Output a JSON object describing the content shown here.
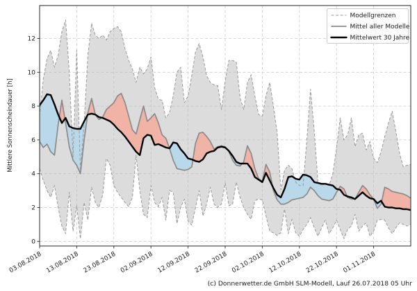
{
  "figure": {
    "ylabel": "Mittlere Sonnenscheindauer [h]",
    "footer": "(c) Donnerwetter.de GmbH SLM-Modell, Lauf 26.07.2018 05 Uhr"
  },
  "legend": {
    "position": "upper right",
    "items": [
      {
        "label": "Modellgrenzen",
        "style": "dashed-gray"
      },
      {
        "label": "Mittel aller Modelle",
        "style": "solid-gray"
      },
      {
        "label": "Mittelwert 30 Jahre",
        "style": "solid-black-thick"
      }
    ]
  },
  "chart_data": {
    "type": "line",
    "title": "",
    "xlabel": "",
    "ylabel": "Mittlere Sonnenscheindauer [h]",
    "x_tick_labels": [
      "03.08.2018",
      "13.08.2018",
      "23.08.2018",
      "02.09.2018",
      "12.09.2018",
      "22.09.2018",
      "02.10.2018",
      "12.10.2018",
      "22.10.2018",
      "01.11.2018"
    ],
    "x_tick_days": [
      0,
      10,
      20,
      30,
      40,
      50,
      60,
      70,
      80,
      90
    ],
    "x_total_days": 100,
    "y_ticks": [
      0,
      2,
      4,
      6,
      8,
      10,
      12
    ],
    "ylim": [
      -0.28,
      13.95
    ],
    "grid": true,
    "series": [
      {
        "name": "Modellgrenzen (obere Grenze)",
        "role": "upper_bound",
        "values": [
          7.4,
          9.6,
          10.8,
          11.3,
          10.3,
          11.0,
          12.4,
          13.1,
          10.0,
          5.0,
          11.3,
          4.2,
          7.0,
          11.0,
          12.9,
          12.2,
          12.0,
          12.2,
          11.9,
          12.4,
          12.6,
          12.7,
          12.4,
          11.4,
          10.7,
          10.2,
          9.4,
          10.3,
          9.9,
          10.2,
          10.9,
          9.1,
          8.4,
          8.35,
          7.3,
          7.6,
          8.6,
          10.0,
          10.3,
          8.2,
          8.6,
          9.8,
          11.2,
          11.7,
          10.9,
          9.8,
          9.4,
          9.25,
          9.2,
          7.8,
          9.5,
          10.7,
          10.7,
          10.6,
          8.5,
          7.8,
          9.4,
          9.85,
          8.6,
          7.5,
          7.4,
          8.6,
          9.4,
          8.0,
          6.4,
          3.05,
          4.2,
          4.5,
          4.3,
          3.5,
          3.3,
          3.3,
          6.0,
          9.0,
          6.5,
          3.5,
          3.3,
          3.4,
          3.3,
          4.0,
          5.5,
          7.3,
          6.0,
          6.3,
          7.3,
          5.6,
          6.3,
          6.4,
          5.4,
          5.9,
          4.9,
          4.65,
          5.3,
          6.2,
          7.0,
          7.7,
          6.5,
          5.2,
          4.4,
          4.5,
          4.55
        ]
      },
      {
        "name": "Modellgrenzen (untere Grenze)",
        "role": "lower_bound",
        "values": [
          4.3,
          3.6,
          3.0,
          2.6,
          3.3,
          2.0,
          0.9,
          0.45,
          2.9,
          0.6,
          2.1,
          0.15,
          2.3,
          1.25,
          3.2,
          2.3,
          2.0,
          2.75,
          4.9,
          4.5,
          3.3,
          2.9,
          2.6,
          2.3,
          2.05,
          2.6,
          5.1,
          3.0,
          1.6,
          1.4,
          3.3,
          2.3,
          2.05,
          2.6,
          1.25,
          3.0,
          2.9,
          1.05,
          2.0,
          2.5,
          1.2,
          0.95,
          2.0,
          3.0,
          1.5,
          2.2,
          3.2,
          2.2,
          2.0,
          2.2,
          3.45,
          2.1,
          2.2,
          3.5,
          2.6,
          2.0,
          1.6,
          1.3,
          2.4,
          2.5,
          2.45,
          1.5,
          0.6,
          0.5,
          0.35,
          0.5,
          1.9,
          0.45,
          1.3,
          0.5,
          0.3,
          0.7,
          1.0,
          1.4,
          0.8,
          0.3,
          0.8,
          1.25,
          0.45,
          0.8,
          1.25,
          0.7,
          0.15,
          0.7,
          0.9,
          1.6,
          0.6,
          0.9,
          1.1,
          0.3,
          0.6,
          1.25,
          1.3,
          1.25,
          0.8,
          0.45,
          0.8,
          1.1,
          1.0,
          0.9,
          1.0
        ]
      },
      {
        "name": "Mittel aller Modelle",
        "role": "model_mean",
        "values": [
          5.9,
          5.55,
          5.75,
          5.3,
          5.1,
          6.9,
          8.35,
          7.0,
          5.6,
          4.8,
          4.5,
          4.0,
          6.0,
          7.6,
          8.45,
          7.5,
          7.2,
          7.35,
          7.8,
          8.0,
          8.2,
          8.6,
          8.75,
          8.2,
          7.4,
          6.6,
          6.35,
          7.2,
          8.0,
          7.1,
          7.3,
          7.55,
          7.0,
          6.3,
          6.1,
          5.5,
          4.8,
          4.3,
          4.25,
          4.2,
          4.25,
          4.4,
          5.8,
          6.4,
          6.45,
          6.2,
          5.9,
          5.45,
          5.6,
          5.65,
          5.6,
          5.3,
          4.8,
          4.5,
          4.45,
          4.7,
          5.65,
          5.2,
          4.3,
          3.7,
          3.55,
          4.55,
          4.1,
          3.0,
          2.45,
          2.2,
          2.2,
          2.3,
          2.45,
          2.5,
          2.55,
          2.6,
          2.8,
          3.2,
          3.0,
          2.7,
          2.5,
          2.45,
          2.4,
          2.5,
          2.9,
          3.25,
          3.1,
          2.6,
          2.5,
          2.5,
          2.9,
          3.3,
          3.1,
          2.75,
          2.5,
          1.95,
          2.2,
          3.2,
          3.1,
          2.95,
          2.9,
          2.85,
          2.8,
          2.7,
          2.55
        ]
      },
      {
        "name": "Mittelwert 30 Jahre",
        "role": "climate_mean",
        "values": [
          8.05,
          8.35,
          8.7,
          8.65,
          8.1,
          7.5,
          7.0,
          7.3,
          6.8,
          6.7,
          6.65,
          6.65,
          7.1,
          7.5,
          7.55,
          7.5,
          7.35,
          7.3,
          7.2,
          7.1,
          6.9,
          6.65,
          6.45,
          6.2,
          5.9,
          5.6,
          5.3,
          5.1,
          6.1,
          6.3,
          6.25,
          5.7,
          5.75,
          5.65,
          5.55,
          5.5,
          5.85,
          5.8,
          5.45,
          5.2,
          4.9,
          4.85,
          4.75,
          4.7,
          4.85,
          5.2,
          5.3,
          5.35,
          5.55,
          5.6,
          5.55,
          5.35,
          5.05,
          4.7,
          4.6,
          4.6,
          4.6,
          4.3,
          3.8,
          3.65,
          3.5,
          4.05,
          3.6,
          3.15,
          2.75,
          2.6,
          3.1,
          3.8,
          3.85,
          3.7,
          3.65,
          3.95,
          3.9,
          3.8,
          3.5,
          3.45,
          3.4,
          3.4,
          3.35,
          3.3,
          3.1,
          3.05,
          2.75,
          2.65,
          2.6,
          2.5,
          2.7,
          2.9,
          2.7,
          2.55,
          2.5,
          2.25,
          2.4,
          2.05,
          2.0,
          2.0,
          1.95,
          1.95,
          1.9,
          1.9,
          1.85
        ]
      }
    ],
    "colors": {
      "band_fill": "#b9b9b9",
      "above_climate_fill": "#f1b3a6",
      "below_climate_fill": "#b9d8e9",
      "model_mean_line": "#8a8a8a",
      "climate_mean_line": "#000000",
      "bound_line": "#999999",
      "grid": "#cccccc"
    }
  }
}
